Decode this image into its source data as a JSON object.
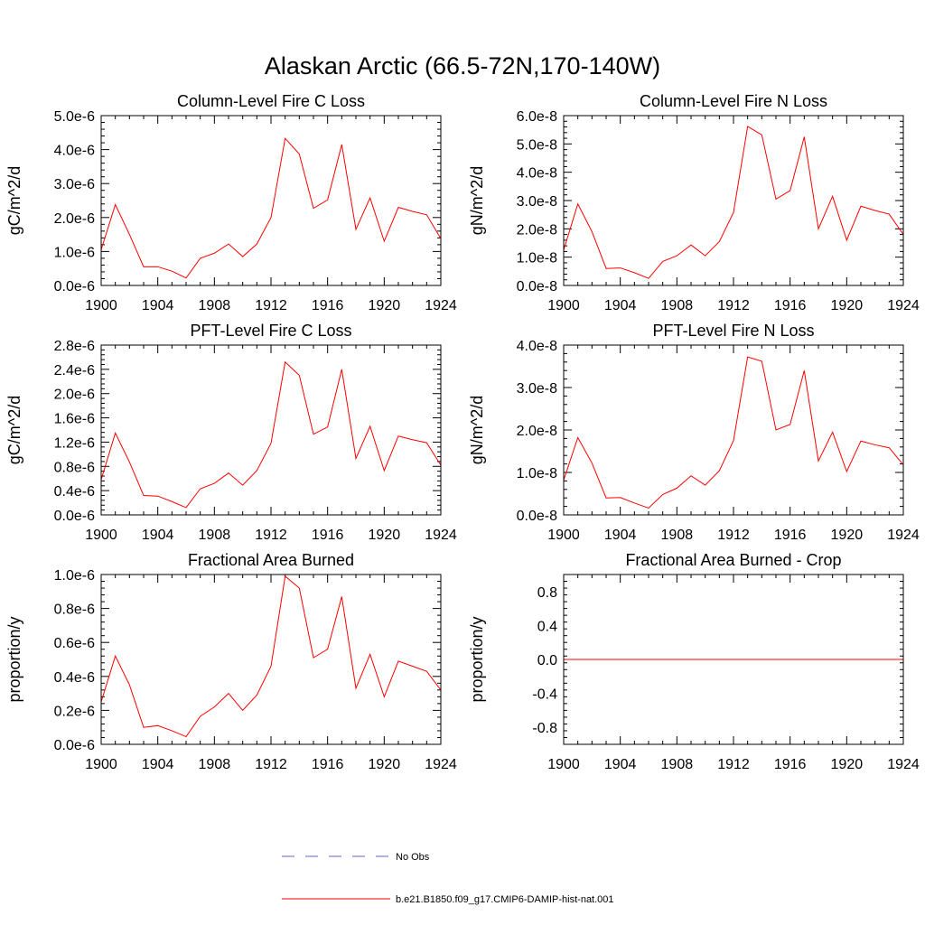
{
  "figure": {
    "title": "Alaskan Arctic (66.5-72N,170-140W)"
  },
  "legend": {
    "entries": [
      {
        "label": "No Obs",
        "color": "#6666cc",
        "style": "dashed"
      },
      {
        "label": "b.e21.B1850.f09_g17.CMIP6-DAMIP-hist-nat.001",
        "color": "#ff0000",
        "style": "solid"
      }
    ]
  },
  "chart_data": [
    {
      "type": "line",
      "title": "Column-Level Fire C Loss",
      "ylabel": "gC/m^2/d",
      "xlim": [
        1900,
        1924
      ],
      "ylim": [
        0,
        5e-06
      ],
      "xticks": [
        1900,
        1904,
        1908,
        1912,
        1916,
        1920,
        1924
      ],
      "xtick_labels": [
        "1900",
        "1904",
        "1908",
        "1912",
        "1916",
        "1920",
        "1924"
      ],
      "yticks": [
        0,
        1e-06,
        2e-06,
        3e-06,
        4e-06,
        5e-06
      ],
      "ytick_labels": [
        "0.0e-6",
        "1.0e-6",
        "2.0e-6",
        "3.0e-6",
        "4.0e-6",
        "5.0e-6"
      ],
      "series": [
        {
          "name": "b.e21.B1850.f09_g17.CMIP6-DAMIP-hist-nat.001",
          "color": "#ff0000",
          "x": [
            1900,
            1901,
            1902,
            1903,
            1904,
            1905,
            1906,
            1907,
            1908,
            1909,
            1910,
            1911,
            1912,
            1913,
            1914,
            1915,
            1916,
            1917,
            1918,
            1919,
            1920,
            1921,
            1922,
            1923,
            1924
          ],
          "values": [
            1.05e-06,
            2.38e-06,
            1.5e-06,
            5.5e-07,
            5.5e-07,
            4.2e-07,
            2.2e-07,
            8e-07,
            9.5e-07,
            1.22e-06,
            8.5e-07,
            1.22e-06,
            2e-06,
            4.33e-06,
            3.87e-06,
            2.27e-06,
            2.52e-06,
            4.15e-06,
            1.65e-06,
            2.58e-06,
            1.3e-06,
            2.3e-06,
            2.18e-06,
            2.08e-06,
            1.38e-06
          ]
        }
      ]
    },
    {
      "type": "line",
      "title": "Column-Level Fire N Loss",
      "ylabel": "gN/m^2/d",
      "xlim": [
        1900,
        1924
      ],
      "ylim": [
        0,
        6e-08
      ],
      "xticks": [
        1900,
        1904,
        1908,
        1912,
        1916,
        1920,
        1924
      ],
      "xtick_labels": [
        "1900",
        "1904",
        "1908",
        "1912",
        "1916",
        "1920",
        "1924"
      ],
      "yticks": [
        0,
        1e-08,
        2e-08,
        3e-08,
        4e-08,
        5e-08,
        6e-08
      ],
      "ytick_labels": [
        "0.0e-8",
        "1.0e-8",
        "2.0e-8",
        "3.0e-8",
        "4.0e-8",
        "5.0e-8",
        "6.0e-8"
      ],
      "series": [
        {
          "name": "b.e21.B1850.f09_g17.CMIP6-DAMIP-hist-nat.001",
          "color": "#ff0000",
          "x": [
            1900,
            1901,
            1902,
            1903,
            1904,
            1905,
            1906,
            1907,
            1908,
            1909,
            1910,
            1911,
            1912,
            1913,
            1914,
            1915,
            1916,
            1917,
            1918,
            1919,
            1920,
            1921,
            1922,
            1923,
            1924
          ],
          "values": [
            1.25e-08,
            2.88e-08,
            1.9e-08,
            6e-09,
            6.2e-09,
            4.5e-09,
            2.5e-09,
            8.5e-09,
            1.05e-08,
            1.43e-08,
            1.05e-08,
            1.55e-08,
            2.58e-08,
            5.62e-08,
            5.32e-08,
            3.05e-08,
            3.35e-08,
            5.25e-08,
            2e-08,
            3.15e-08,
            1.6e-08,
            2.8e-08,
            2.65e-08,
            2.52e-08,
            1.8e-08
          ]
        }
      ]
    },
    {
      "type": "line",
      "title": "PFT-Level Fire C Loss",
      "ylabel": "gC/m^2/d",
      "xlim": [
        1900,
        1924
      ],
      "ylim": [
        0,
        2.8e-06
      ],
      "xticks": [
        1900,
        1904,
        1908,
        1912,
        1916,
        1920,
        1924
      ],
      "xtick_labels": [
        "1900",
        "1904",
        "1908",
        "1912",
        "1916",
        "1920",
        "1924"
      ],
      "yticks": [
        0,
        4e-07,
        8e-07,
        1.2e-06,
        1.6e-06,
        2e-06,
        2.4e-06,
        2.8e-06
      ],
      "ytick_labels": [
        "0.0e-6",
        "0.4e-6",
        "0.8e-6",
        "1.2e-6",
        "1.6e-6",
        "2.0e-6",
        "2.4e-6",
        "2.8e-6"
      ],
      "series": [
        {
          "name": "b.e21.B1850.f09_g17.CMIP6-DAMIP-hist-nat.001",
          "color": "#ff0000",
          "x": [
            1900,
            1901,
            1902,
            1903,
            1904,
            1905,
            1906,
            1907,
            1908,
            1909,
            1910,
            1911,
            1912,
            1913,
            1914,
            1915,
            1916,
            1917,
            1918,
            1919,
            1920,
            1921,
            1922,
            1923,
            1924
          ],
          "values": [
            5.8e-07,
            1.35e-06,
            8.7e-07,
            3.2e-07,
            3.1e-07,
            2.2e-07,
            1.2e-07,
            4.3e-07,
            5.2e-07,
            6.9e-07,
            4.9e-07,
            7.3e-07,
            1.18e-06,
            2.52e-06,
            2.3e-06,
            1.33e-06,
            1.45e-06,
            2.4e-06,
            9.3e-07,
            1.46e-06,
            7.3e-07,
            1.3e-06,
            1.24e-06,
            1.19e-06,
            8.2e-07
          ]
        }
      ]
    },
    {
      "type": "line",
      "title": "PFT-Level Fire N Loss",
      "ylabel": "gN/m^2/d",
      "xlim": [
        1900,
        1924
      ],
      "ylim": [
        0,
        4e-08
      ],
      "xticks": [
        1900,
        1904,
        1908,
        1912,
        1916,
        1920,
        1924
      ],
      "xtick_labels": [
        "1900",
        "1904",
        "1908",
        "1912",
        "1916",
        "1920",
        "1924"
      ],
      "yticks": [
        0,
        1e-08,
        2e-08,
        3e-08,
        4e-08
      ],
      "ytick_labels": [
        "0.0e-8",
        "1.0e-8",
        "2.0e-8",
        "3.0e-8",
        "4.0e-8"
      ],
      "series": [
        {
          "name": "b.e21.B1850.f09_g17.CMIP6-DAMIP-hist-nat.001",
          "color": "#ff0000",
          "x": [
            1900,
            1901,
            1902,
            1903,
            1904,
            1905,
            1906,
            1907,
            1908,
            1909,
            1910,
            1911,
            1912,
            1913,
            1914,
            1915,
            1916,
            1917,
            1918,
            1919,
            1920,
            1921,
            1922,
            1923,
            1924
          ],
          "values": [
            8.2e-09,
            1.82e-08,
            1.22e-08,
            4e-09,
            4.1e-09,
            2.8e-09,
            1.6e-09,
            4.8e-09,
            6.3e-09,
            9.2e-09,
            7e-09,
            1.04e-08,
            1.75e-08,
            3.72e-08,
            3.62e-08,
            2e-08,
            2.13e-08,
            3.4e-08,
            1.27e-08,
            1.95e-08,
            1.02e-08,
            1.74e-08,
            1.65e-08,
            1.58e-08,
            1.18e-08
          ]
        }
      ]
    },
    {
      "type": "line",
      "title": "Fractional Area Burned",
      "ylabel": "proportion/y",
      "xlim": [
        1900,
        1924
      ],
      "ylim": [
        0,
        1e-06
      ],
      "xticks": [
        1900,
        1904,
        1908,
        1912,
        1916,
        1920,
        1924
      ],
      "xtick_labels": [
        "1900",
        "1904",
        "1908",
        "1912",
        "1916",
        "1920",
        "1924"
      ],
      "yticks": [
        0,
        2e-07,
        4e-07,
        6e-07,
        8e-07,
        1e-06
      ],
      "ytick_labels": [
        "0.0e-6",
        "0.2e-6",
        "0.4e-6",
        "0.6e-6",
        "0.8e-6",
        "1.0e-6"
      ],
      "series": [
        {
          "name": "b.e21.B1850.f09_g17.CMIP6-DAMIP-hist-nat.001",
          "color": "#ff0000",
          "x": [
            1900,
            1901,
            1902,
            1903,
            1904,
            1905,
            1906,
            1907,
            1908,
            1909,
            1910,
            1911,
            1912,
            1913,
            1914,
            1915,
            1916,
            1917,
            1918,
            1919,
            1920,
            1921,
            1922,
            1923,
            1924
          ],
          "values": [
            2.5e-07,
            5.2e-07,
            3.5e-07,
            1e-07,
            1.1e-07,
            8e-08,
            4.5e-08,
            1.65e-07,
            2.2e-07,
            3e-07,
            2e-07,
            2.9e-07,
            4.6e-07,
            9.9e-07,
            9.2e-07,
            5.1e-07,
            5.6e-07,
            8.7e-07,
            3.3e-07,
            5.3e-07,
            2.8e-07,
            4.9e-07,
            4.6e-07,
            4.3e-07,
            3.2e-07
          ]
        }
      ]
    },
    {
      "type": "line",
      "title": "Fractional Area Burned - Crop",
      "ylabel": "proportion/y",
      "xlim": [
        1900,
        1924
      ],
      "ylim": [
        -1.0,
        1.0
      ],
      "xticks": [
        1900,
        1904,
        1908,
        1912,
        1916,
        1920,
        1924
      ],
      "xtick_labels": [
        "1900",
        "1904",
        "1908",
        "1912",
        "1916",
        "1920",
        "1924"
      ],
      "yticks": [
        -0.8,
        -0.4,
        0.0,
        0.4,
        0.8
      ],
      "ytick_labels": [
        "-0.8",
        "-0.4",
        "0.0",
        "0.4",
        "0.8"
      ],
      "series": [
        {
          "name": "b.e21.B1850.f09_g17.CMIP6-DAMIP-hist-nat.001",
          "color": "#ff0000",
          "x": [
            1900,
            1901,
            1902,
            1903,
            1904,
            1905,
            1906,
            1907,
            1908,
            1909,
            1910,
            1911,
            1912,
            1913,
            1914,
            1915,
            1916,
            1917,
            1918,
            1919,
            1920,
            1921,
            1922,
            1923,
            1924
          ],
          "values": [
            0,
            0,
            0,
            0,
            0,
            0,
            0,
            0,
            0,
            0,
            0,
            0,
            0,
            0,
            0,
            0,
            0,
            0,
            0,
            0,
            0,
            0,
            0,
            0,
            0
          ]
        }
      ]
    }
  ]
}
